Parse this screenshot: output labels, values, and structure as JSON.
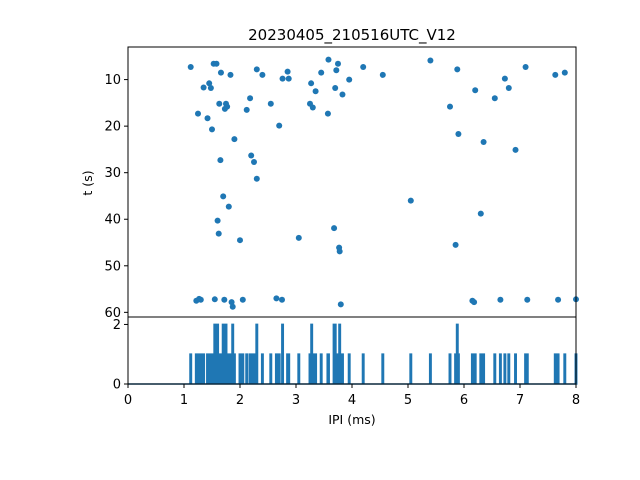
{
  "chart_data": [
    {
      "type": "scatter",
      "title": "20230405_210516UTC_V12",
      "xlabel": "",
      "ylabel": "t (s)",
      "xlim": [
        0,
        8
      ],
      "ylim": [
        61,
        3
      ],
      "y_inverted": true,
      "yticks": [
        10,
        20,
        30,
        40,
        50,
        60
      ],
      "grid": false,
      "color": "#1f77b4",
      "points": [
        [
          1.12,
          7.3
        ],
        [
          1.22,
          57.5
        ],
        [
          1.25,
          17.3
        ],
        [
          1.27,
          57.1
        ],
        [
          1.3,
          57.3
        ],
        [
          1.35,
          11.7
        ],
        [
          1.42,
          18.3
        ],
        [
          1.45,
          10.8
        ],
        [
          1.48,
          11.8
        ],
        [
          1.5,
          20.7
        ],
        [
          1.53,
          6.6
        ],
        [
          1.55,
          57.2
        ],
        [
          1.58,
          6.6
        ],
        [
          1.6,
          40.3
        ],
        [
          1.62,
          43.1
        ],
        [
          1.63,
          15.2
        ],
        [
          1.65,
          27.3
        ],
        [
          1.66,
          8.5
        ],
        [
          1.7,
          35.1
        ],
        [
          1.72,
          57.3
        ],
        [
          1.73,
          16.3
        ],
        [
          1.75,
          15.2
        ],
        [
          1.77,
          15.8
        ],
        [
          1.8,
          37.3
        ],
        [
          1.83,
          9.0
        ],
        [
          1.85,
          57.8
        ],
        [
          1.87,
          58.8
        ],
        [
          1.9,
          22.8
        ],
        [
          2.0,
          44.5
        ],
        [
          2.05,
          57.3
        ],
        [
          2.12,
          16.5
        ],
        [
          2.18,
          14.0
        ],
        [
          2.2,
          26.3
        ],
        [
          2.25,
          27.7
        ],
        [
          2.3,
          31.3
        ],
        [
          2.3,
          7.8
        ],
        [
          2.4,
          9.0
        ],
        [
          2.55,
          15.2
        ],
        [
          2.65,
          57.0
        ],
        [
          2.7,
          19.9
        ],
        [
          2.75,
          57.3
        ],
        [
          2.76,
          9.8
        ],
        [
          2.85,
          8.3
        ],
        [
          2.87,
          9.8
        ],
        [
          3.05,
          44.0
        ],
        [
          3.25,
          15.2
        ],
        [
          3.27,
          10.8
        ],
        [
          3.3,
          16.0
        ],
        [
          3.35,
          12.5
        ],
        [
          3.45,
          8.5
        ],
        [
          3.57,
          17.3
        ],
        [
          3.58,
          5.7
        ],
        [
          3.68,
          41.9
        ],
        [
          3.7,
          11.8
        ],
        [
          3.72,
          8.0
        ],
        [
          3.75,
          6.6
        ],
        [
          3.77,
          46.1
        ],
        [
          3.78,
          46.9
        ],
        [
          3.8,
          58.3
        ],
        [
          3.83,
          13.2
        ],
        [
          3.95,
          10.0
        ],
        [
          4.2,
          7.3
        ],
        [
          4.55,
          9.0
        ],
        [
          5.05,
          36.0
        ],
        [
          5.4,
          5.9
        ],
        [
          5.75,
          15.8
        ],
        [
          5.85,
          45.5
        ],
        [
          5.88,
          7.8
        ],
        [
          5.9,
          21.7
        ],
        [
          6.15,
          57.5
        ],
        [
          6.18,
          57.8
        ],
        [
          6.2,
          12.3
        ],
        [
          6.3,
          38.8
        ],
        [
          6.35,
          23.4
        ],
        [
          6.55,
          14.0
        ],
        [
          6.65,
          57.3
        ],
        [
          6.73,
          9.8
        ],
        [
          6.8,
          11.8
        ],
        [
          6.92,
          25.1
        ],
        [
          7.1,
          7.3
        ],
        [
          7.13,
          57.3
        ],
        [
          7.63,
          9.0
        ],
        [
          7.68,
          57.3
        ],
        [
          7.8,
          8.5
        ],
        [
          8.0,
          57.2
        ]
      ]
    },
    {
      "type": "line",
      "title": "",
      "xlabel": "IPI (ms)",
      "ylabel": "",
      "xlim": [
        0,
        8
      ],
      "ylim": [
        0,
        2.25
      ],
      "xticks": [
        0,
        1,
        2,
        3,
        4,
        5,
        6,
        7,
        8
      ],
      "yticks": [
        0,
        2
      ],
      "grid": false,
      "color": "#1f77b4",
      "counts": [
        [
          1.12,
          1
        ],
        [
          1.22,
          1
        ],
        [
          1.25,
          1
        ],
        [
          1.27,
          1
        ],
        [
          1.3,
          1
        ],
        [
          1.35,
          1
        ],
        [
          1.42,
          1
        ],
        [
          1.45,
          1
        ],
        [
          1.48,
          1
        ],
        [
          1.5,
          1
        ],
        [
          1.55,
          2
        ],
        [
          1.6,
          2
        ],
        [
          1.62,
          1
        ],
        [
          1.65,
          1
        ],
        [
          1.7,
          2
        ],
        [
          1.75,
          2
        ],
        [
          1.8,
          1
        ],
        [
          1.83,
          1
        ],
        [
          1.87,
          2
        ],
        [
          1.9,
          1
        ],
        [
          2.0,
          1
        ],
        [
          2.05,
          1
        ],
        [
          2.12,
          1
        ],
        [
          2.18,
          1
        ],
        [
          2.2,
          1
        ],
        [
          2.25,
          1
        ],
        [
          2.3,
          2
        ],
        [
          2.4,
          1
        ],
        [
          2.55,
          1
        ],
        [
          2.65,
          1
        ],
        [
          2.7,
          1
        ],
        [
          2.76,
          2
        ],
        [
          2.85,
          1
        ],
        [
          2.87,
          1
        ],
        [
          3.05,
          1
        ],
        [
          3.25,
          1
        ],
        [
          3.28,
          2
        ],
        [
          3.3,
          1
        ],
        [
          3.35,
          1
        ],
        [
          3.45,
          1
        ],
        [
          3.57,
          1
        ],
        [
          3.58,
          1
        ],
        [
          3.68,
          2
        ],
        [
          3.7,
          2
        ],
        [
          3.72,
          1
        ],
        [
          3.75,
          1
        ],
        [
          3.78,
          2
        ],
        [
          3.8,
          1
        ],
        [
          3.83,
          1
        ],
        [
          3.95,
          1
        ],
        [
          4.2,
          1
        ],
        [
          4.55,
          1
        ],
        [
          5.05,
          1
        ],
        [
          5.4,
          1
        ],
        [
          5.75,
          1
        ],
        [
          5.85,
          1
        ],
        [
          5.88,
          2
        ],
        [
          5.9,
          1
        ],
        [
          6.15,
          1
        ],
        [
          6.18,
          1
        ],
        [
          6.2,
          1
        ],
        [
          6.3,
          1
        ],
        [
          6.35,
          1
        ],
        [
          6.55,
          1
        ],
        [
          6.65,
          1
        ],
        [
          6.73,
          1
        ],
        [
          6.8,
          1
        ],
        [
          6.92,
          1
        ],
        [
          7.1,
          1
        ],
        [
          7.13,
          1
        ],
        [
          7.63,
          1
        ],
        [
          7.68,
          1
        ],
        [
          7.8,
          1
        ],
        [
          8.0,
          1
        ]
      ]
    }
  ]
}
